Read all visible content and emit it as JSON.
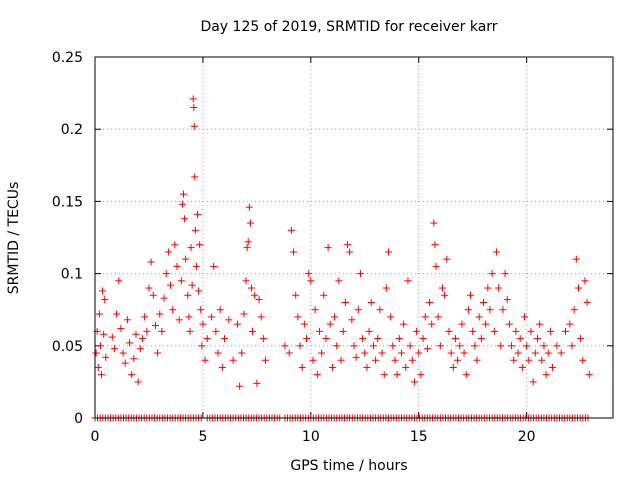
{
  "chart_data": {
    "type": "scatter",
    "title": "Day 125 of 2019, SRMTID for receiver karr",
    "xlabel": "GPS time / hours",
    "ylabel": "SRMTID / TECUs",
    "xlim": [
      0,
      24
    ],
    "ylim": [
      0,
      0.25
    ],
    "x_ticks": [
      {
        "value": 0,
        "label": "0"
      },
      {
        "value": 5,
        "label": "5"
      },
      {
        "value": 10,
        "label": "10"
      },
      {
        "value": 15,
        "label": "15"
      },
      {
        "value": 20,
        "label": "20"
      }
    ],
    "y_ticks": [
      {
        "value": 0,
        "label": "0"
      },
      {
        "value": 0.05,
        "label": "0.05"
      },
      {
        "value": 0.1,
        "label": "0.1"
      },
      {
        "value": 0.15,
        "label": "0.15"
      },
      {
        "value": 0.2,
        "label": "0.2"
      },
      {
        "value": 0.25,
        "label": "0.25"
      }
    ],
    "grid": true,
    "marker": "+",
    "color": "#ff0000",
    "series": [
      {
        "name": "SRMTID",
        "points": [
          [
            0.05,
            0.045
          ],
          [
            0.1,
            0.06
          ],
          [
            0.15,
            0.035
          ],
          [
            0.2,
            0.072
          ],
          [
            0.25,
            0.05
          ],
          [
            0.3,
            0.03
          ],
          [
            0.35,
            0.088
          ],
          [
            0.4,
            0.058
          ],
          [
            0.45,
            0.082
          ],
          [
            0.5,
            0.042
          ],
          [
            0.8,
            0.056
          ],
          [
            0.9,
            0.048
          ],
          [
            1.0,
            0.072
          ],
          [
            1.1,
            0.095
          ],
          [
            1.2,
            0.062
          ],
          [
            1.3,
            0.045
          ],
          [
            1.4,
            0.038
          ],
          [
            1.5,
            0.068
          ],
          [
            1.6,
            0.052
          ],
          [
            1.7,
            0.03
          ],
          [
            1.8,
            0.041
          ],
          [
            1.9,
            0.058
          ],
          [
            2.0,
            0.025
          ],
          [
            2.1,
            0.048
          ],
          [
            2.2,
            0.055
          ],
          [
            2.3,
            0.07
          ],
          [
            2.4,
            0.06
          ],
          [
            2.5,
            0.09
          ],
          [
            2.6,
            0.108
          ],
          [
            2.7,
            0.085
          ],
          [
            2.8,
            0.064
          ],
          [
            2.9,
            0.045
          ],
          [
            3.0,
            0.072
          ],
          [
            3.1,
            0.06
          ],
          [
            3.2,
            0.083
          ],
          [
            3.3,
            0.1
          ],
          [
            3.4,
            0.115
          ],
          [
            3.5,
            0.092
          ],
          [
            3.6,
            0.075
          ],
          [
            3.7,
            0.12
          ],
          [
            3.8,
            0.105
          ],
          [
            3.9,
            0.068
          ],
          [
            4.0,
            0.095
          ],
          [
            4.05,
            0.148
          ],
          [
            4.1,
            0.155
          ],
          [
            4.15,
            0.138
          ],
          [
            4.2,
            0.11
          ],
          [
            4.3,
            0.085
          ],
          [
            4.35,
            0.07
          ],
          [
            4.4,
            0.06
          ],
          [
            4.45,
            0.118
          ],
          [
            4.5,
            0.092
          ],
          [
            4.55,
            0.221
          ],
          [
            4.58,
            0.215
          ],
          [
            4.6,
            0.202
          ],
          [
            4.62,
            0.167
          ],
          [
            4.65,
            0.13
          ],
          [
            4.7,
            0.105
          ],
          [
            4.75,
            0.141
          ],
          [
            4.8,
            0.088
          ],
          [
            4.85,
            0.12
          ],
          [
            4.9,
            0.075
          ],
          [
            4.95,
            0.05
          ],
          [
            5.0,
            0.065
          ],
          [
            5.1,
            0.04
          ],
          [
            5.2,
            0.055
          ],
          [
            5.4,
            0.07
          ],
          [
            5.5,
            0.105
          ],
          [
            5.6,
            0.06
          ],
          [
            5.7,
            0.045
          ],
          [
            5.8,
            0.075
          ],
          [
            5.9,
            0.035
          ],
          [
            6.0,
            0.055
          ],
          [
            6.2,
            0.068
          ],
          [
            6.4,
            0.04
          ],
          [
            6.6,
            0.065
          ],
          [
            6.7,
            0.022
          ],
          [
            6.8,
            0.045
          ],
          [
            6.9,
            0.072
          ],
          [
            7.0,
            0.095
          ],
          [
            7.05,
            0.118
          ],
          [
            7.1,
            0.122
          ],
          [
            7.15,
            0.146
          ],
          [
            7.2,
            0.135
          ],
          [
            7.25,
            0.09
          ],
          [
            7.3,
            0.06
          ],
          [
            7.4,
            0.085
          ],
          [
            7.5,
            0.024
          ],
          [
            7.6,
            0.082
          ],
          [
            7.7,
            0.07
          ],
          [
            7.8,
            0.055
          ],
          [
            7.9,
            0.04
          ],
          [
            8.8,
            0.05
          ],
          [
            9.0,
            0.045
          ],
          [
            9.1,
            0.13
          ],
          [
            9.2,
            0.115
          ],
          [
            9.3,
            0.085
          ],
          [
            9.4,
            0.07
          ],
          [
            9.5,
            0.05
          ],
          [
            9.6,
            0.035
          ],
          [
            9.7,
            0.065
          ],
          [
            9.8,
            0.055
          ],
          [
            9.9,
            0.1
          ],
          [
            10.0,
            0.095
          ],
          [
            10.1,
            0.04
          ],
          [
            10.2,
            0.075
          ],
          [
            10.3,
            0.03
          ],
          [
            10.4,
            0.06
          ],
          [
            10.5,
            0.045
          ],
          [
            10.6,
            0.085
          ],
          [
            10.7,
            0.055
          ],
          [
            10.8,
            0.118
          ],
          [
            10.9,
            0.065
          ],
          [
            11.0,
            0.035
          ],
          [
            11.1,
            0.07
          ],
          [
            11.2,
            0.05
          ],
          [
            11.3,
            0.095
          ],
          [
            11.4,
            0.04
          ],
          [
            11.5,
            0.06
          ],
          [
            11.6,
            0.08
          ],
          [
            11.7,
            0.12
          ],
          [
            11.8,
            0.115
          ],
          [
            11.9,
            0.068
          ],
          [
            12.0,
            0.05
          ],
          [
            12.1,
            0.042
          ],
          [
            12.2,
            0.075
          ],
          [
            12.3,
            0.1
          ],
          [
            12.4,
            0.055
          ],
          [
            12.5,
            0.045
          ],
          [
            12.6,
            0.035
          ],
          [
            12.7,
            0.06
          ],
          [
            12.8,
            0.08
          ],
          [
            12.9,
            0.05
          ],
          [
            13.0,
            0.04
          ],
          [
            13.1,
            0.055
          ],
          [
            13.2,
            0.075
          ],
          [
            13.3,
            0.045
          ],
          [
            13.4,
            0.03
          ],
          [
            13.5,
            0.09
          ],
          [
            13.6,
            0.115
          ],
          [
            13.7,
            0.07
          ],
          [
            13.8,
            0.05
          ],
          [
            13.9,
            0.04
          ],
          [
            14.0,
            0.03
          ],
          [
            14.1,
            0.055
          ],
          [
            14.2,
            0.045
          ],
          [
            14.3,
            0.065
          ],
          [
            14.4,
            0.035
          ],
          [
            14.5,
            0.095
          ],
          [
            14.6,
            0.05
          ],
          [
            14.7,
            0.04
          ],
          [
            14.8,
            0.025
          ],
          [
            14.9,
            0.06
          ],
          [
            15.0,
            0.045
          ],
          [
            15.1,
            0.03
          ],
          [
            15.2,
            0.055
          ],
          [
            15.3,
            0.07
          ],
          [
            15.4,
            0.048
          ],
          [
            15.5,
            0.08
          ],
          [
            15.6,
            0.065
          ],
          [
            15.7,
            0.135
          ],
          [
            15.75,
            0.12
          ],
          [
            15.8,
            0.105
          ],
          [
            15.9,
            0.07
          ],
          [
            16.0,
            0.05
          ],
          [
            16.1,
            0.09
          ],
          [
            16.2,
            0.085
          ],
          [
            16.3,
            0.11
          ],
          [
            16.4,
            0.06
          ],
          [
            16.5,
            0.045
          ],
          [
            16.6,
            0.035
          ],
          [
            16.7,
            0.055
          ],
          [
            16.8,
            0.04
          ],
          [
            16.9,
            0.05
          ],
          [
            17.0,
            0.065
          ],
          [
            17.1,
            0.045
          ],
          [
            17.2,
            0.03
          ],
          [
            17.3,
            0.075
          ],
          [
            17.4,
            0.085
          ],
          [
            17.5,
            0.06
          ],
          [
            17.6,
            0.05
          ],
          [
            17.7,
            0.04
          ],
          [
            17.8,
            0.07
          ],
          [
            17.9,
            0.055
          ],
          [
            18.0,
            0.08
          ],
          [
            18.1,
            0.065
          ],
          [
            18.2,
            0.09
          ],
          [
            18.3,
            0.075
          ],
          [
            18.4,
            0.1
          ],
          [
            18.5,
            0.06
          ],
          [
            18.6,
            0.115
          ],
          [
            18.7,
            0.09
          ],
          [
            18.8,
            0.05
          ],
          [
            18.9,
            0.075
          ],
          [
            19.0,
            0.1
          ],
          [
            19.1,
            0.082
          ],
          [
            19.2,
            0.065
          ],
          [
            19.3,
            0.05
          ],
          [
            19.4,
            0.04
          ],
          [
            19.5,
            0.06
          ],
          [
            19.6,
            0.045
          ],
          [
            19.7,
            0.055
          ],
          [
            19.8,
            0.035
          ],
          [
            19.9,
            0.07
          ],
          [
            20.0,
            0.05
          ],
          [
            20.1,
            0.04
          ],
          [
            20.2,
            0.06
          ],
          [
            20.3,
            0.025
          ],
          [
            20.4,
            0.045
          ],
          [
            20.5,
            0.055
          ],
          [
            20.6,
            0.065
          ],
          [
            20.7,
            0.04
          ],
          [
            20.8,
            0.05
          ],
          [
            20.9,
            0.03
          ],
          [
            21.0,
            0.045
          ],
          [
            21.1,
            0.06
          ],
          [
            21.2,
            0.035
          ],
          [
            21.4,
            0.05
          ],
          [
            21.6,
            0.045
          ],
          [
            21.8,
            0.06
          ],
          [
            22.0,
            0.065
          ],
          [
            22.1,
            0.05
          ],
          [
            22.2,
            0.075
          ],
          [
            22.3,
            0.11
          ],
          [
            22.4,
            0.09
          ],
          [
            22.5,
            0.055
          ],
          [
            22.6,
            0.04
          ],
          [
            22.7,
            0.095
          ],
          [
            22.8,
            0.08
          ],
          [
            22.9,
            0.03
          ]
        ]
      }
    ],
    "zero_bands": [
      [
        0.0,
        0.5
      ],
      [
        0.6,
        5.0
      ],
      [
        5.2,
        8.6
      ],
      [
        8.8,
        22.9
      ]
    ]
  }
}
